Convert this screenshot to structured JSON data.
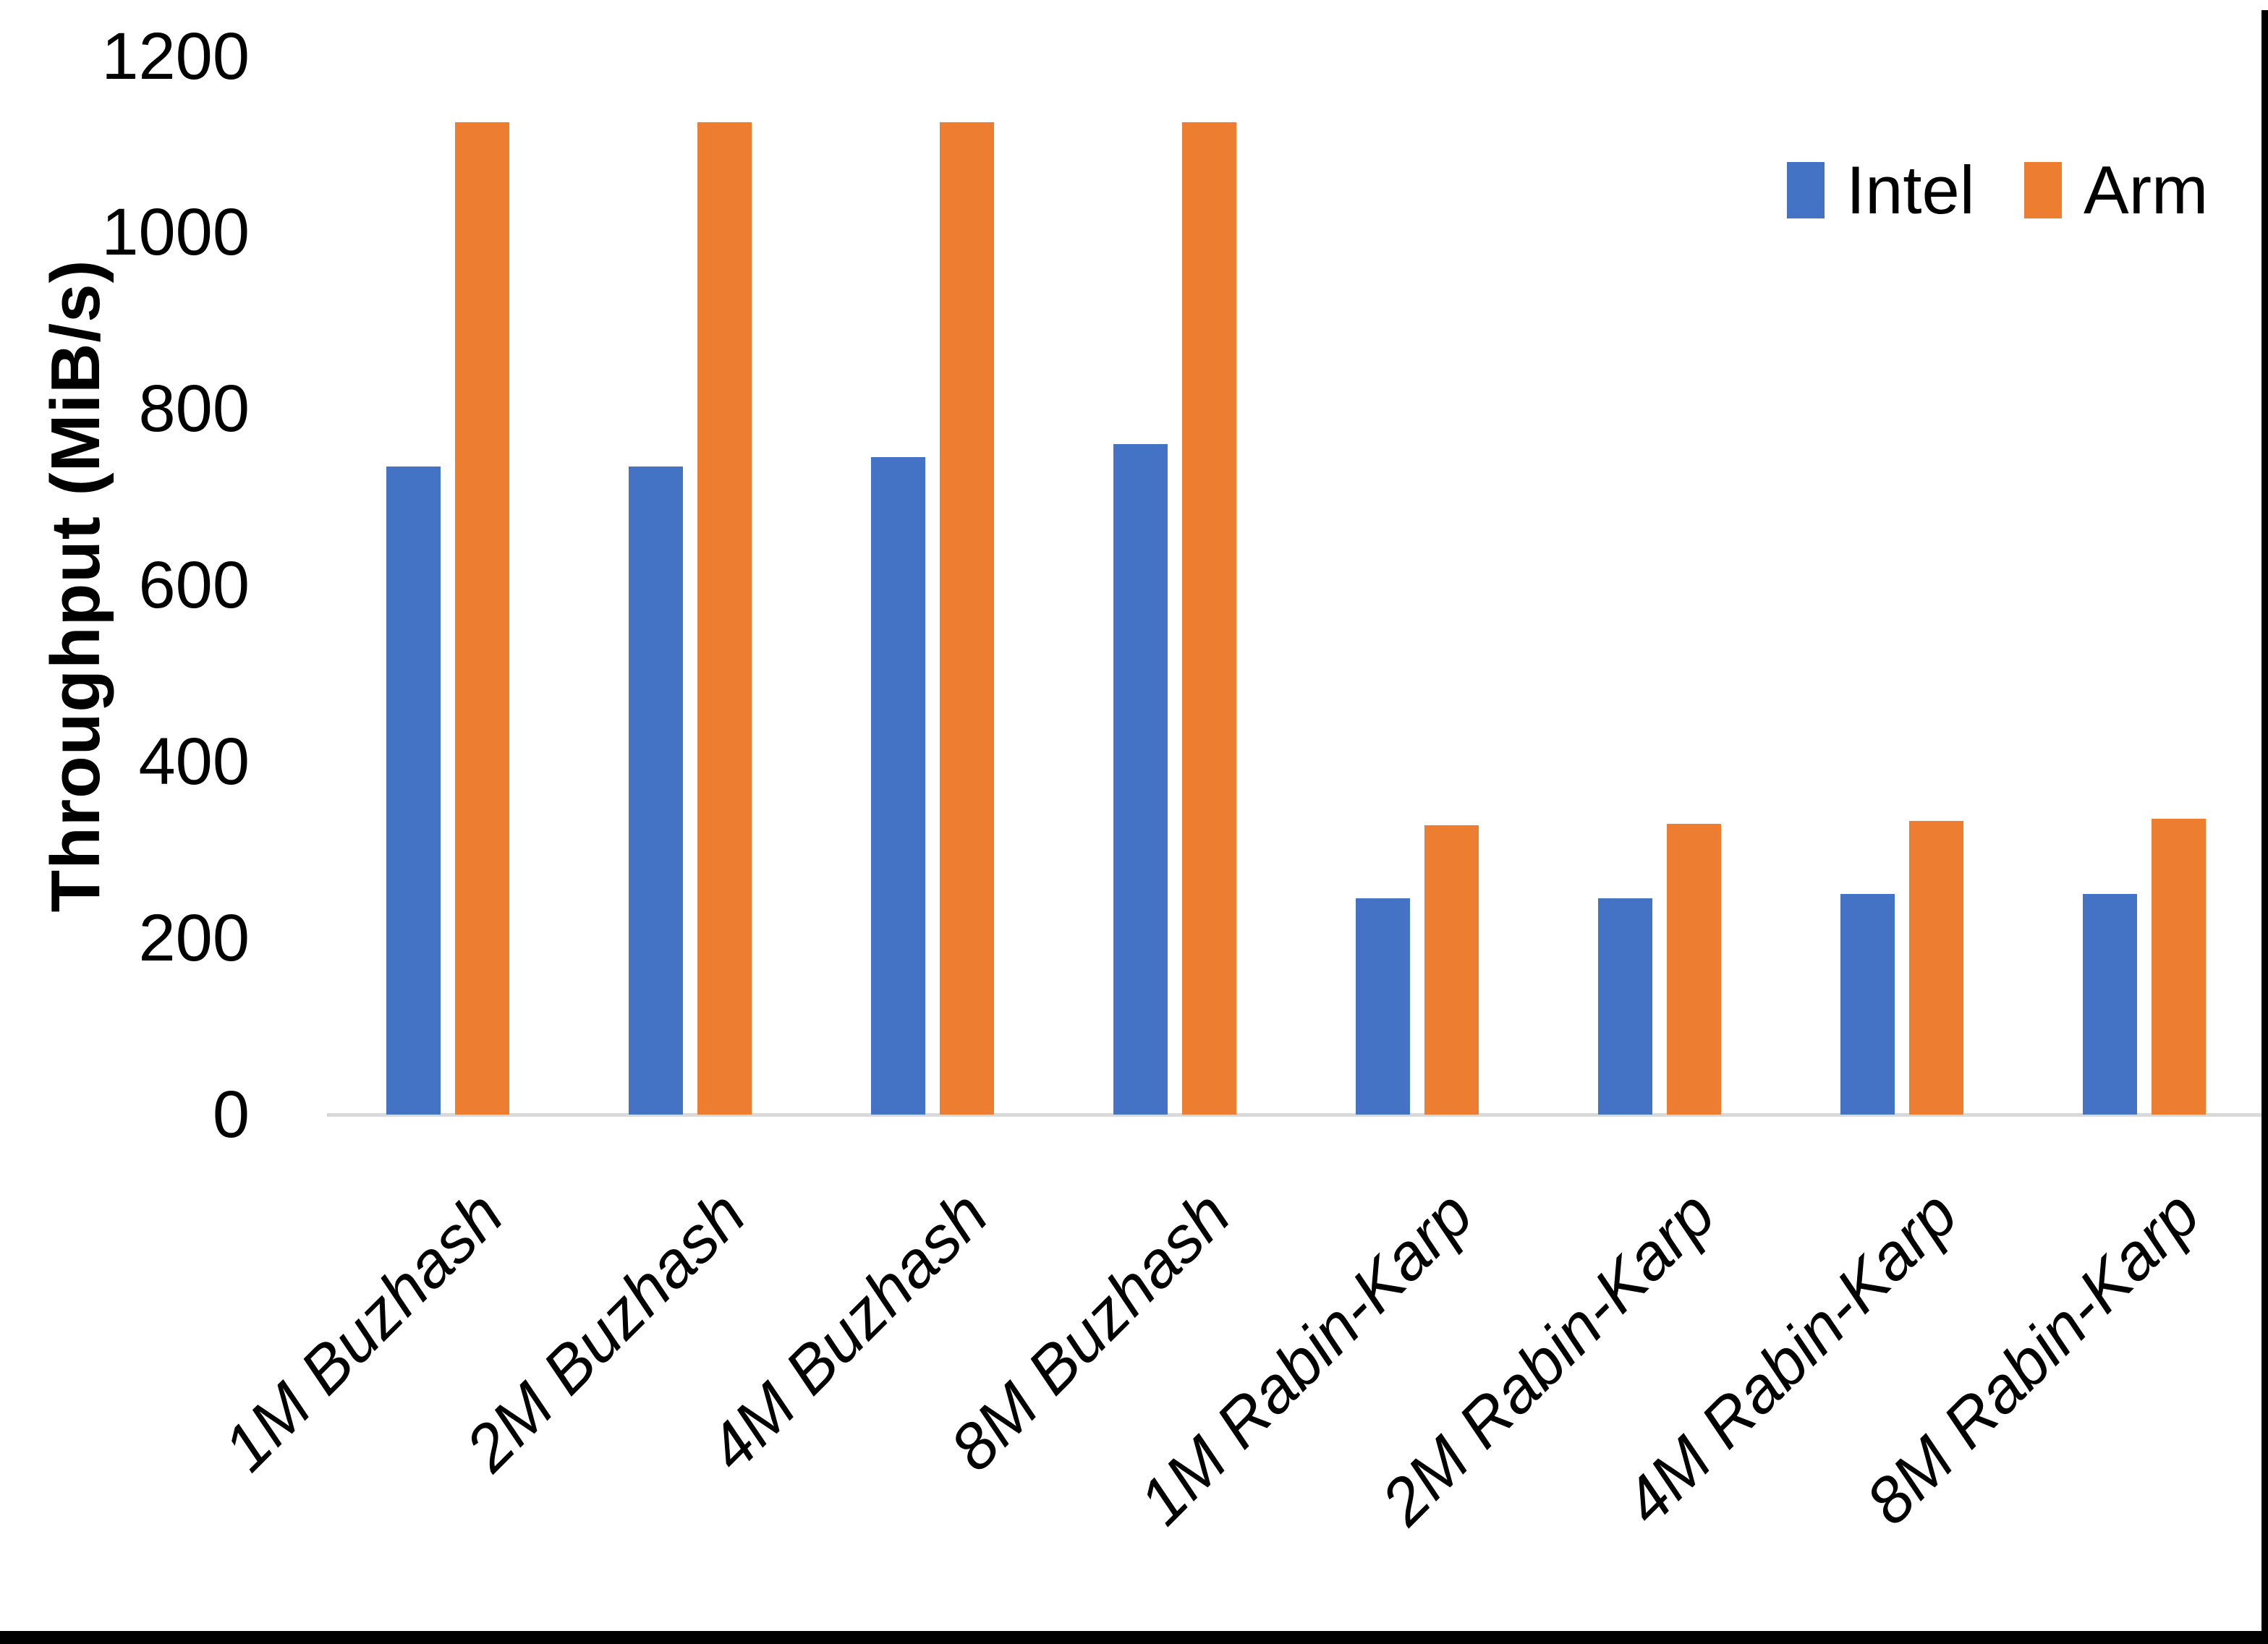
{
  "chart_data": {
    "type": "bar",
    "title": "",
    "xlabel": "",
    "ylabel": "Throughput (MiB/s)",
    "categories": [
      "1M Buzhash",
      "2M Buzhash",
      "4M Buzhash",
      "8M Buzhash",
      "1M Rabin-Karp",
      "2M Rabin-Karp",
      "4M Rabin-Karp",
      "8M Rabin-Karp"
    ],
    "series": [
      {
        "name": "Intel",
        "color": "#4472C4",
        "values": [
          735,
          735,
          745,
          760,
          245,
          245,
          250,
          250
        ]
      },
      {
        "name": "Arm",
        "color": "#ED7D31",
        "values": [
          1125,
          1125,
          1125,
          1125,
          328,
          330,
          333,
          335
        ]
      }
    ],
    "ylim": [
      0,
      1200
    ],
    "yticks": [
      0,
      200,
      400,
      600,
      800,
      1000,
      1200
    ],
    "grid": false,
    "legend_position": "top-right",
    "axis_line_color": "#D9D9D9",
    "text_color": "#000000"
  }
}
